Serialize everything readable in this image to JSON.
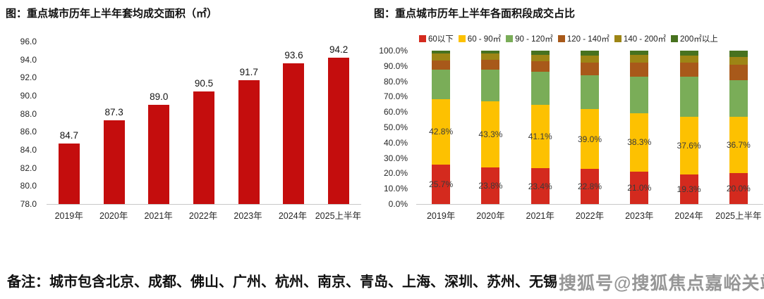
{
  "left_chart": {
    "title": "图：重点城市历年上半年套均成交面积（㎡）"
  },
  "right_chart": {
    "title": "图：重点城市历年上半年各面积段成交占比"
  },
  "note": "备注：城市包含北京、成都、佛山、广州、杭州、南京、青岛、上海、深圳、苏州、无锡",
  "watermark": "搜狐号@搜狐焦点嘉峪关站",
  "chart_data": [
    {
      "type": "bar",
      "title": "图：重点城市历年上半年套均成交面积（㎡）",
      "categories": [
        "2019年",
        "2020年",
        "2021年",
        "2022年",
        "2023年",
        "2024年",
        "2025上半年"
      ],
      "values": [
        84.7,
        87.3,
        89.0,
        90.5,
        91.7,
        93.6,
        94.2
      ],
      "value_labels": [
        "84.7",
        "87.3",
        "89.0",
        "90.5",
        "91.7",
        "93.6",
        "94.2"
      ],
      "xlabel": "",
      "ylabel": "",
      "ylim": [
        78.0,
        96.0
      ],
      "yticks": [
        "96.0",
        "94.0",
        "92.0",
        "90.0",
        "88.0",
        "86.0",
        "84.0",
        "82.0",
        "80.0",
        "78.0"
      ],
      "bar_color": "#c40d0d",
      "grid": false,
      "legend_position": "none"
    },
    {
      "type": "stacked-bar",
      "title": "图：重点城市历年上半年各面积段成交占比",
      "categories": [
        "2019年",
        "2020年",
        "2021年",
        "2022年",
        "2023年",
        "2024年",
        "2025上半年"
      ],
      "series": [
        {
          "name": "60以下",
          "color": "#d42a1e",
          "values": [
            25.7,
            23.8,
            23.4,
            22.8,
            21.0,
            19.3,
            20.0
          ],
          "labels": [
            "25.7%",
            "23.8%",
            "23.4%",
            "22.8%",
            "21.0%",
            "19.3%",
            "20.0%"
          ]
        },
        {
          "name": "60 - 90㎡",
          "color": "#fdc101",
          "values": [
            42.8,
            43.3,
            41.1,
            39.0,
            38.3,
            37.6,
            36.7
          ],
          "labels": [
            "42.8%",
            "43.3%",
            "41.1%",
            "39.0%",
            "38.3%",
            "37.6%",
            "36.7%"
          ]
        },
        {
          "name": "90 - 120㎡",
          "color": "#7aad58",
          "values": [
            19.0,
            20.3,
            21.8,
            22.3,
            23.6,
            26.3,
            24.0
          ],
          "labels": null
        },
        {
          "name": "120 - 140㎡",
          "color": "#a8591a",
          "values": [
            6.0,
            6.5,
            6.9,
            8.1,
            9.4,
            8.9,
            10.3
          ],
          "labels": null
        },
        {
          "name": "140 - 200㎡",
          "color": "#9d8515",
          "values": [
            4.9,
            4.1,
            4.1,
            4.5,
            4.8,
            4.6,
            4.8
          ],
          "labels": null
        },
        {
          "name": "200㎡以上",
          "color": "#47721f",
          "values": [
            1.6,
            2.0,
            2.7,
            3.3,
            2.9,
            3.3,
            4.2
          ],
          "labels": null
        }
      ],
      "ylim": [
        0,
        100
      ],
      "yticks": [
        "100.0%",
        "90.0%",
        "80.0%",
        "70.0%",
        "60.0%",
        "50.0%",
        "40.0%",
        "30.0%",
        "20.0%",
        "10.0%",
        "0.0%"
      ],
      "grid": false,
      "legend_position": "top"
    }
  ]
}
